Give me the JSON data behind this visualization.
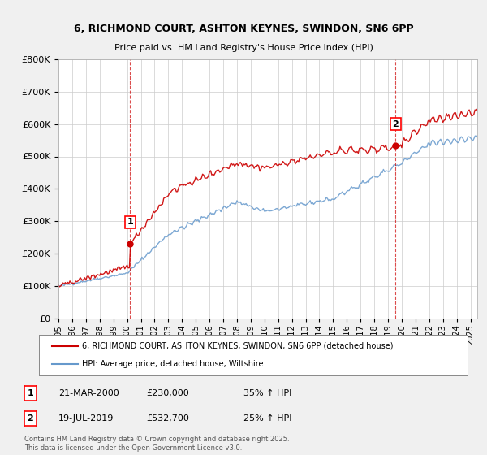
{
  "title1": "6, RICHMOND COURT, ASHTON KEYNES, SWINDON, SN6 6PP",
  "title2": "Price paid vs. HM Land Registry's House Price Index (HPI)",
  "red_label": "6, RICHMOND COURT, ASHTON KEYNES, SWINDON, SN6 6PP (detached house)",
  "blue_label": "HPI: Average price, detached house, Wiltshire",
  "annotation1_date": "21-MAR-2000",
  "annotation1_price": "£230,000",
  "annotation1_hpi": "35% ↑ HPI",
  "annotation2_date": "19-JUL-2019",
  "annotation2_price": "£532,700",
  "annotation2_hpi": "25% ↑ HPI",
  "footer": "Contains HM Land Registry data © Crown copyright and database right 2025.\nThis data is licensed under the Open Government Licence v3.0.",
  "ylim": [
    0,
    800000
  ],
  "yticks": [
    0,
    100000,
    200000,
    300000,
    400000,
    500000,
    600000,
    700000,
    800000
  ],
  "xlim_start": 1995.0,
  "xlim_end": 2025.5,
  "marker1_x": 2000.22,
  "marker1_y": 230000,
  "marker2_x": 2019.54,
  "marker2_y": 532700,
  "vline1_x": 2000.22,
  "vline2_x": 2019.54,
  "background_color": "#f0f0f0",
  "plot_bg_color": "#ffffff",
  "red_color": "#cc0000",
  "blue_color": "#6699cc",
  "grid_color": "#cccccc"
}
